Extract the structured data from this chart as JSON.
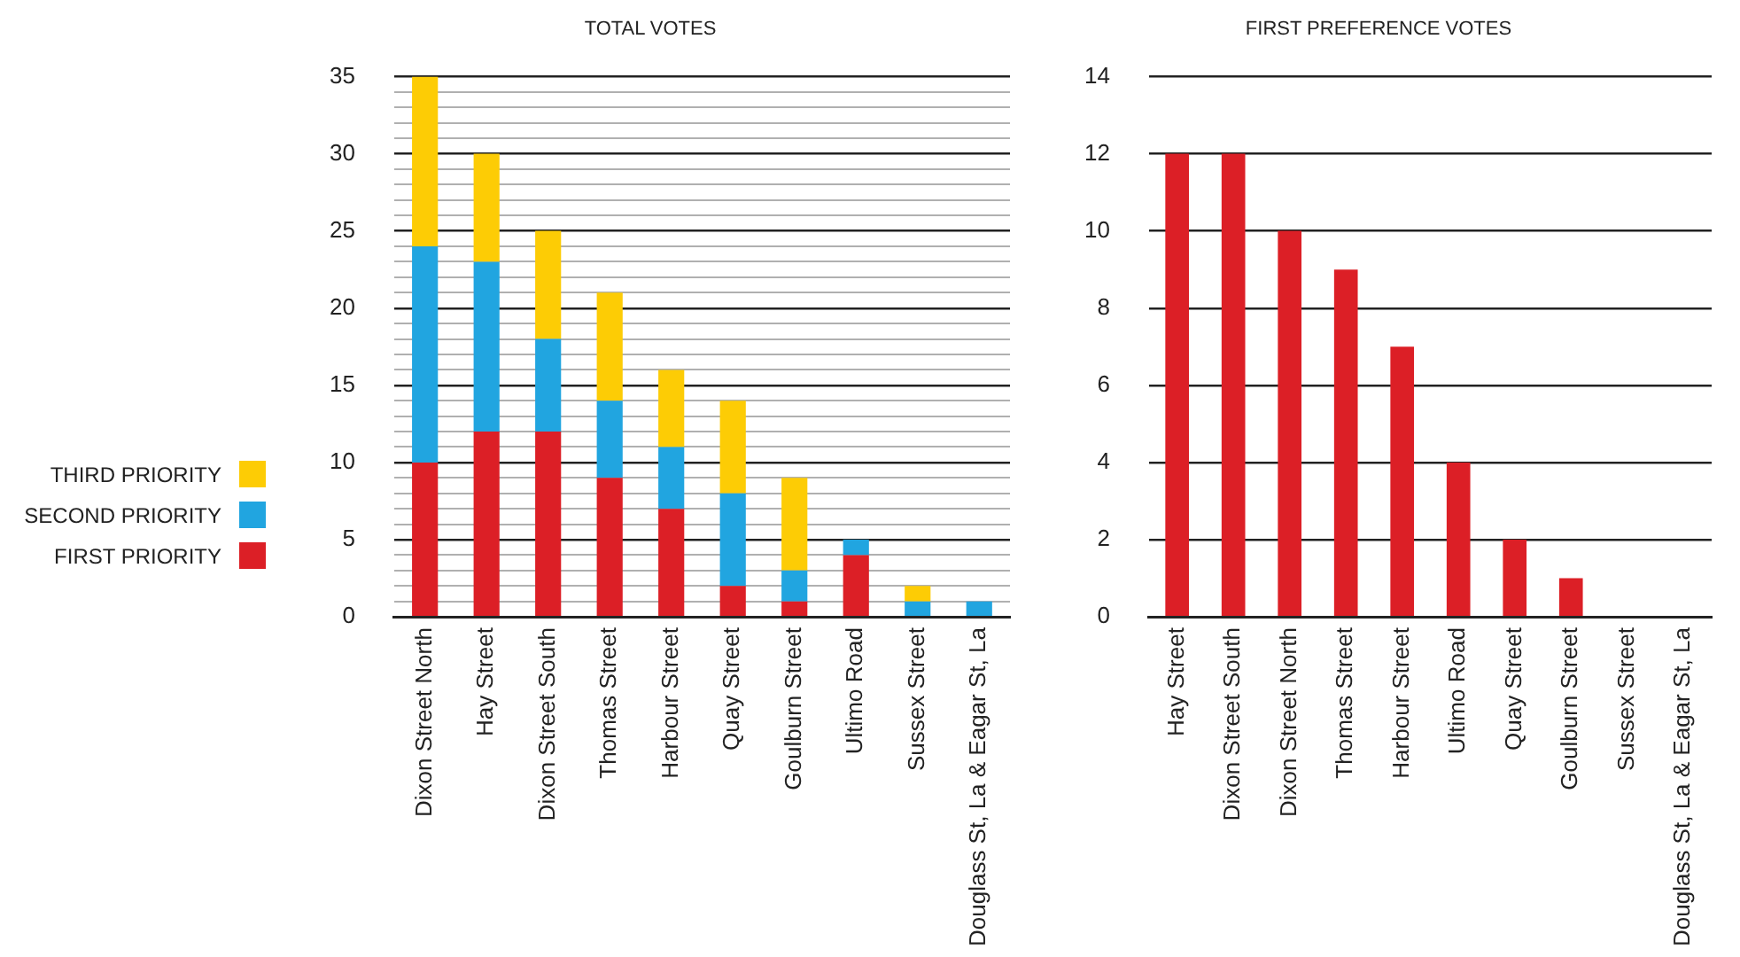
{
  "chart_data": [
    {
      "type": "bar",
      "title": "TOTAL VOTES",
      "stacked": true,
      "legend": "left",
      "grid": "y",
      "categories": [
        "Dixon Street North",
        "Hay Street",
        "Dixon Street South",
        "Thomas Street",
        "Harbour Street",
        "Quay Street",
        "Goulburn Street",
        "Ultimo Road",
        "Sussex Street",
        "Douglass St, La & Eagar St, La"
      ],
      "series": [
        {
          "name": "FIRST PRIORITY",
          "color": "#dc1f26",
          "values": [
            10,
            12,
            12,
            9,
            7,
            2,
            1,
            4,
            0,
            0
          ]
        },
        {
          "name": "SECOND PRIORITY",
          "color": "#21a5e0",
          "values": [
            14,
            11,
            6,
            5,
            4,
            6,
            2,
            1,
            1,
            1
          ]
        },
        {
          "name": "THIRD PRIORITY",
          "color": "#fdcc05",
          "values": [
            11,
            7,
            7,
            7,
            5,
            6,
            6,
            0,
            1,
            0
          ]
        }
      ],
      "ylim": [
        0,
        35
      ],
      "yticks": [
        0,
        {
          "value": 1,
          "label": null
        },
        {
          "value": 2,
          "label": null
        },
        {
          "value": 3,
          "label": null
        },
        {
          "value": 4,
          "label": null
        },
        5,
        {
          "value": 6,
          "label": null
        },
        {
          "value": 7,
          "label": null
        },
        {
          "value": 8,
          "label": null
        },
        {
          "value": 9,
          "label": null
        },
        10,
        {
          "value": 11,
          "label": null
        },
        {
          "value": 12,
          "label": null
        },
        {
          "value": 13,
          "label": null
        },
        {
          "value": 14,
          "label": null
        },
        15,
        {
          "value": 16,
          "label": null
        },
        {
          "value": 17,
          "label": null
        },
        {
          "value": 18,
          "label": null
        },
        {
          "value": 19,
          "label": null
        },
        20,
        {
          "value": 21,
          "label": null
        },
        {
          "value": 22,
          "label": null
        },
        {
          "value": 23,
          "label": null
        },
        {
          "value": 24,
          "label": null
        },
        25,
        {
          "value": 26,
          "label": null
        },
        {
          "value": 27,
          "label": null
        },
        {
          "value": 28,
          "label": null
        },
        {
          "value": 29,
          "label": null
        },
        30,
        {
          "value": 31,
          "label": null
        },
        {
          "value": 32,
          "label": null
        },
        {
          "value": 33,
          "label": null
        },
        {
          "value": 34,
          "label": null
        },
        35
      ]
    },
    {
      "type": "bar",
      "title": "FIRST PREFERENCE VOTES",
      "grid": "y",
      "color": "#dc1f26",
      "categories": [
        "Hay Street",
        "Dixon Street South",
        "Dixon Street North",
        "Thomas Street",
        "Harbour Street",
        "Ultimo Road",
        "Quay Street",
        "Goulburn Street",
        "Sussex Street",
        "Douglass St, La & Eagar St, La"
      ],
      "values": [
        12,
        12,
        10,
        9,
        7,
        4,
        2,
        1,
        0,
        0
      ],
      "ylim": [
        0,
        14
      ],
      "yticks": [
        0,
        2,
        4,
        6,
        8,
        10,
        12,
        14
      ]
    }
  ]
}
